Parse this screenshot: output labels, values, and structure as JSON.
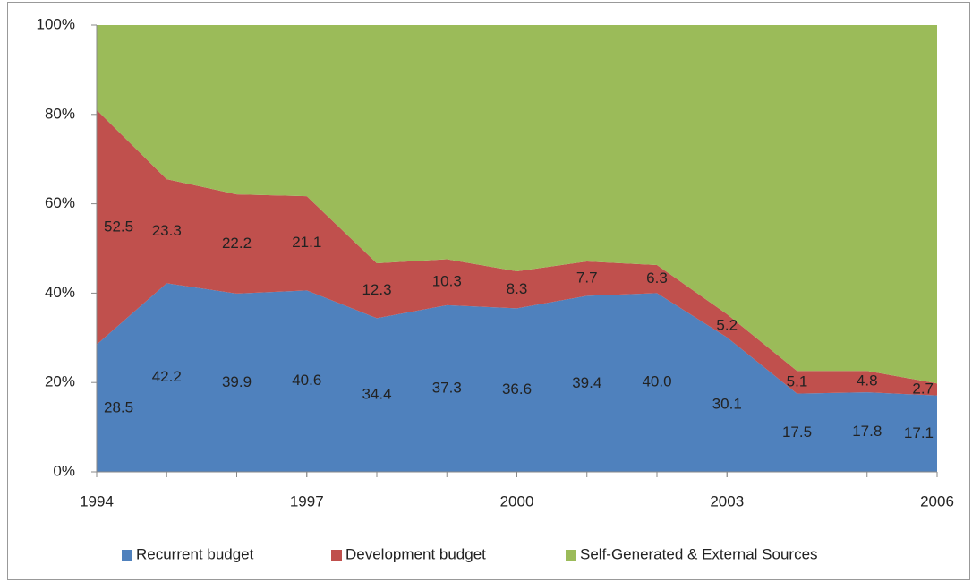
{
  "chart_data": {
    "type": "area",
    "x": [
      1994,
      1995,
      1996,
      1997,
      1998,
      1999,
      2000,
      2001,
      2002,
      2003,
      2004,
      2005,
      2006
    ],
    "xlim": [
      1994,
      2006
    ],
    "xticks": [
      1994,
      1997,
      2000,
      2003,
      2006
    ],
    "ylim": [
      0,
      100
    ],
    "yticks": [
      {
        "value": 0,
        "label": "0%"
      },
      {
        "value": 20,
        "label": "20%"
      },
      {
        "value": 40,
        "label": "40%"
      },
      {
        "value": 60,
        "label": "60%"
      },
      {
        "value": 80,
        "label": "80%"
      },
      {
        "value": 100,
        "label": "100%"
      }
    ],
    "stacked": true,
    "legend": "bottom",
    "series": [
      {
        "name": "Recurrent budget",
        "color": "#4f81bd",
        "values": [
          28.5,
          42.2,
          39.9,
          40.6,
          34.4,
          37.3,
          36.6,
          39.4,
          40.0,
          30.1,
          17.5,
          17.8,
          17.1
        ],
        "value_labels": [
          "28.5",
          "42.2",
          "39.9",
          "40.6",
          "34.4",
          "37.3",
          "36.6",
          "39.4",
          "40.0",
          "30.1",
          "17.5",
          "17.8",
          "17.1"
        ]
      },
      {
        "name": "Development budget",
        "color": "#c0504d",
        "values": [
          52.5,
          23.3,
          22.2,
          21.1,
          12.3,
          10.3,
          8.3,
          7.7,
          6.3,
          5.2,
          5.1,
          4.8,
          2.7
        ],
        "value_labels": [
          "52.5",
          "23.3",
          "22.2",
          "21.1",
          "12.3",
          "10.3",
          "8.3",
          "7.7",
          "6.3",
          "5.2",
          "5.1",
          "4.8",
          "2.7"
        ]
      },
      {
        "name": "Self-Generated & External Sources",
        "color": "#9bbb59",
        "values": [
          19.0,
          34.5,
          37.9,
          38.3,
          53.3,
          52.4,
          55.1,
          52.9,
          53.7,
          64.7,
          77.4,
          77.4,
          80.2
        ]
      }
    ]
  }
}
